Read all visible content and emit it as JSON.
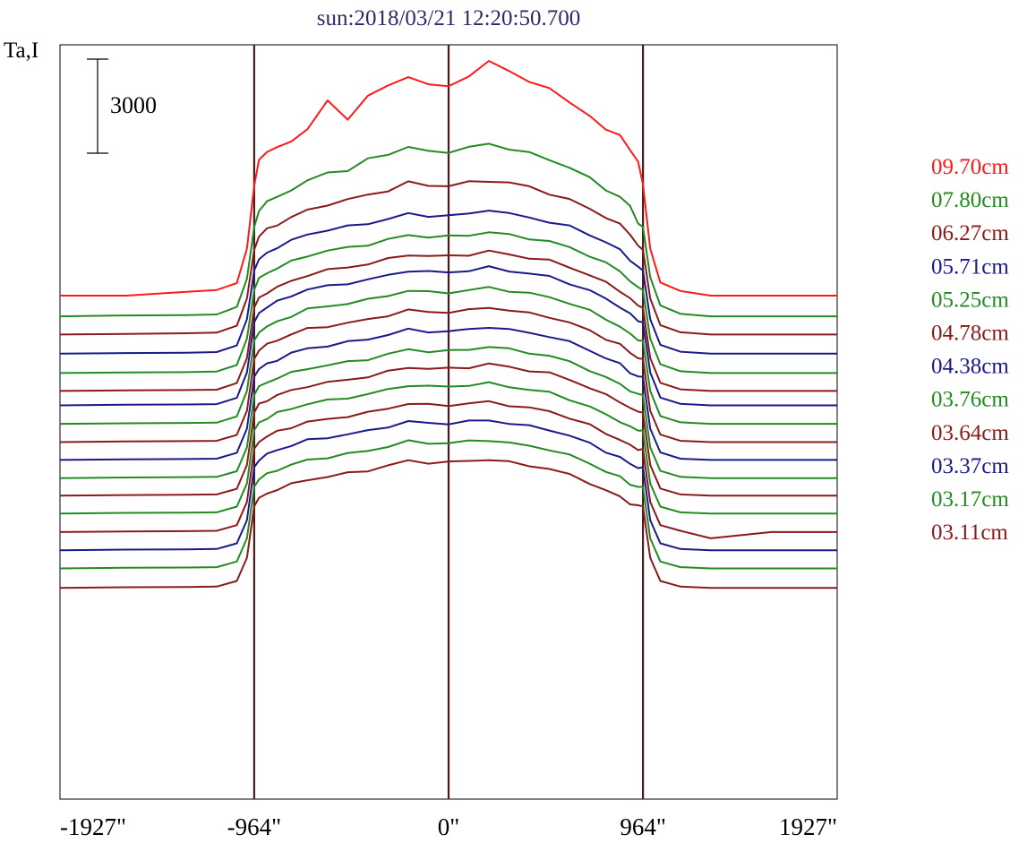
{
  "chart_data": {
    "type": "line",
    "title": "sun:2018/03/21 12:20:50.700",
    "ylabel": "Ta,I",
    "xlim": [
      -1927,
      1927
    ],
    "xticks": [
      {
        "value": -1927,
        "label": "-1927\""
      },
      {
        "value": -964,
        "label": "-964\""
      },
      {
        "value": 0,
        "label": "0\""
      },
      {
        "value": 964,
        "label": "964\""
      },
      {
        "value": 1927,
        "label": "1927\""
      }
    ],
    "vlines": [
      -964,
      0,
      964
    ],
    "vline_color": "#4a1a1a",
    "scale_bar": {
      "value": 3000,
      "label": "3000"
    },
    "limb_arcsec": 964,
    "profile_arcsec": [
      -1927,
      -1600,
      -1300,
      -1150,
      -1050,
      -1000,
      -964,
      -940,
      -900,
      -850,
      -780,
      -700,
      -600,
      -500,
      -400,
      -300,
      -200,
      -100,
      0,
      100,
      200,
      300,
      400,
      500,
      600,
      700,
      780,
      850,
      900,
      940,
      964,
      1000,
      1050,
      1150,
      1300,
      1600,
      1927
    ],
    "grid": false,
    "legend_position": "right",
    "series": [
      {
        "name": "09.70cm",
        "color": "#ff1a1a",
        "baseline": 0,
        "values": [
          0,
          0,
          120,
          180,
          400,
          1500,
          3500,
          4350,
          4600,
          4700,
          4950,
          5300,
          6200,
          5650,
          6350,
          6700,
          7000,
          6700,
          6700,
          7000,
          7450,
          7200,
          6800,
          6600,
          6200,
          5700,
          5300,
          5150,
          4600,
          4300,
          3550,
          1500,
          420,
          150,
          0,
          0,
          0
        ]
      },
      {
        "name": "07.80cm",
        "color": "#228b22",
        "baseline": -660,
        "values": [
          0,
          30,
          40,
          60,
          300,
          1200,
          2850,
          3400,
          3650,
          3800,
          4050,
          4300,
          4600,
          4650,
          5000,
          5180,
          5400,
          5250,
          5250,
          5380,
          5500,
          5350,
          5200,
          5000,
          4750,
          4400,
          4050,
          3800,
          3500,
          3000,
          2850,
          1250,
          350,
          80,
          0,
          0,
          0
        ]
      },
      {
        "name": "06.27cm",
        "color": "#8b1a1a",
        "baseline": -1240,
        "values": [
          0,
          20,
          40,
          60,
          280,
          1150,
          2700,
          3150,
          3350,
          3500,
          3750,
          3950,
          4150,
          4300,
          4450,
          4600,
          4850,
          4750,
          4750,
          4850,
          4900,
          4850,
          4700,
          4500,
          4300,
          4000,
          3750,
          3500,
          3200,
          2850,
          2700,
          1150,
          300,
          70,
          0,
          0,
          0
        ]
      },
      {
        "name": "05.71cm",
        "color": "#1a1a8b",
        "baseline": -1850,
        "values": [
          0,
          20,
          30,
          50,
          260,
          1100,
          2650,
          3000,
          3200,
          3400,
          3600,
          3800,
          3950,
          4050,
          4150,
          4300,
          4450,
          4400,
          4400,
          4450,
          4600,
          4450,
          4350,
          4200,
          4050,
          3800,
          3550,
          3300,
          3000,
          2750,
          2650,
          1100,
          280,
          60,
          0,
          0,
          0
        ]
      },
      {
        "name": "05.25cm",
        "color": "#228b22",
        "baseline": -2470,
        "values": [
          0,
          20,
          30,
          50,
          260,
          1100,
          2650,
          3000,
          3200,
          3350,
          3550,
          3750,
          3900,
          4000,
          4100,
          4250,
          4400,
          4350,
          4350,
          4400,
          4500,
          4400,
          4300,
          4200,
          4000,
          3750,
          3500,
          3250,
          2950,
          2700,
          2650,
          1100,
          280,
          60,
          0,
          0,
          0
        ]
      },
      {
        "name": "04.78cm",
        "color": "#8b1a1a",
        "baseline": -3040,
        "values": [
          0,
          20,
          30,
          40,
          250,
          1050,
          2650,
          2950,
          3150,
          3300,
          3500,
          3700,
          3850,
          3950,
          4050,
          4200,
          4350,
          4300,
          4300,
          4350,
          4450,
          4350,
          4250,
          4150,
          3950,
          3700,
          3450,
          3200,
          2950,
          2700,
          2650,
          1050,
          260,
          50,
          0,
          0,
          0
        ]
      },
      {
        "name": "04.38cm",
        "color": "#1a1a8b",
        "baseline": -3500,
        "values": [
          0,
          20,
          30,
          40,
          240,
          1050,
          2650,
          2950,
          3150,
          3300,
          3500,
          3700,
          3800,
          3900,
          4000,
          4150,
          4300,
          4250,
          4250,
          4300,
          4400,
          4300,
          4200,
          4100,
          3900,
          3650,
          3400,
          3150,
          2900,
          2700,
          2650,
          1050,
          250,
          50,
          0,
          0,
          0
        ]
      },
      {
        "name": "03.76cm",
        "color": "#228b22",
        "baseline": -4090,
        "values": [
          0,
          20,
          30,
          40,
          240,
          1050,
          2650,
          2950,
          3100,
          3250,
          3450,
          3650,
          3750,
          3850,
          3950,
          4100,
          4250,
          4200,
          4200,
          4250,
          4350,
          4250,
          4150,
          4050,
          3850,
          3600,
          3350,
          3100,
          2850,
          2700,
          2650,
          1050,
          250,
          50,
          0,
          0,
          0
        ]
      },
      {
        "name": "03.64cm",
        "color": "#8b1a1a",
        "baseline": -4670,
        "values": [
          0,
          20,
          30,
          40,
          230,
          1000,
          2650,
          2950,
          3100,
          3250,
          3450,
          3600,
          3700,
          3800,
          3900,
          4050,
          4200,
          4150,
          4150,
          4200,
          4300,
          4200,
          4100,
          4000,
          3800,
          3550,
          3300,
          3100,
          2850,
          2700,
          2650,
          1000,
          240,
          40,
          0,
          0,
          0
        ]
      },
      {
        "name": "03.37cm",
        "color": "#1a1a8b",
        "baseline": -5240,
        "values": [
          0,
          20,
          30,
          40,
          230,
          1000,
          2650,
          2900,
          3050,
          3200,
          3400,
          3550,
          3650,
          3750,
          3850,
          4000,
          4150,
          4100,
          4100,
          4150,
          4250,
          4150,
          4050,
          3950,
          3750,
          3500,
          3250,
          3050,
          2800,
          2650,
          2650,
          1000,
          240,
          40,
          0,
          0,
          0
        ]
      },
      {
        "name": "03.17cm",
        "color": "#228b22",
        "baseline": -5820,
        "values": [
          0,
          20,
          30,
          40,
          220,
          980,
          2650,
          2900,
          3050,
          3200,
          3350,
          3500,
          3600,
          3700,
          3800,
          3950,
          4100,
          4050,
          4050,
          4100,
          4200,
          4100,
          4000,
          3900,
          3700,
          3450,
          3200,
          3000,
          2800,
          2650,
          2650,
          980,
          230,
          40,
          0,
          0,
          0
        ]
      },
      {
        "name": "03.11cm",
        "color": "#8b1a1a",
        "baseline": -6380,
        "values": [
          0,
          20,
          30,
          40,
          220,
          980,
          2650,
          2900,
          3050,
          3200,
          3350,
          3500,
          3600,
          3700,
          3800,
          3950,
          4100,
          4050,
          4050,
          4100,
          4200,
          4100,
          4000,
          3900,
          3700,
          3450,
          3200,
          3000,
          2800,
          2650,
          2650,
          980,
          230,
          40,
          0,
          0,
          0
        ]
      },
      {
        "name": "",
        "color": "#228b22",
        "baseline": -6950,
        "values": [
          0,
          20,
          30,
          40,
          220,
          960,
          2650,
          2900,
          3050,
          3200,
          3350,
          3500,
          3600,
          3700,
          3800,
          3950,
          4100,
          4050,
          4050,
          4100,
          4150,
          4050,
          3950,
          3850,
          3650,
          3400,
          3150,
          2950,
          2750,
          2650,
          2650,
          960,
          220,
          40,
          0,
          0,
          0
        ]
      },
      {
        "name": "",
        "color": "#8b1a1a",
        "baseline": -7540,
        "values": [
          0,
          20,
          30,
          40,
          220,
          960,
          2650,
          2900,
          3050,
          3200,
          3350,
          3500,
          3600,
          3700,
          3800,
          3950,
          4100,
          4050,
          4050,
          4100,
          4150,
          4050,
          3950,
          3850,
          3650,
          3400,
          3150,
          2950,
          2750,
          2650,
          2650,
          960,
          220,
          40,
          -200,
          0,
          0
        ]
      },
      {
        "name": "",
        "color": "#1a1a8b",
        "baseline": -8120,
        "values": [
          0,
          20,
          30,
          40,
          220,
          960,
          2650,
          2900,
          3050,
          3200,
          3350,
          3500,
          3600,
          3700,
          3800,
          3950,
          4100,
          4050,
          4050,
          4100,
          4150,
          4050,
          3950,
          3850,
          3650,
          3400,
          3150,
          2950,
          2750,
          2650,
          2650,
          960,
          220,
          40,
          0,
          0,
          0
        ]
      },
      {
        "name": "",
        "color": "#228b22",
        "baseline": -8700,
        "values": [
          0,
          20,
          30,
          40,
          220,
          960,
          2600,
          2850,
          3000,
          3150,
          3300,
          3450,
          3550,
          3650,
          3750,
          3900,
          4050,
          4000,
          4000,
          4050,
          4100,
          4000,
          3900,
          3800,
          3600,
          3350,
          3100,
          2900,
          2700,
          2600,
          2600,
          960,
          220,
          40,
          0,
          0,
          0
        ]
      },
      {
        "name": "",
        "color": "#8b1a1a",
        "baseline": -9320,
        "values": [
          0,
          20,
          30,
          40,
          220,
          960,
          2600,
          2850,
          3000,
          3150,
          3300,
          3450,
          3550,
          3650,
          3750,
          3900,
          4050,
          4000,
          4000,
          4050,
          4100,
          4000,
          3900,
          3800,
          3600,
          3350,
          3100,
          2900,
          2700,
          2600,
          2600,
          960,
          220,
          40,
          0,
          0,
          0
        ]
      }
    ]
  }
}
